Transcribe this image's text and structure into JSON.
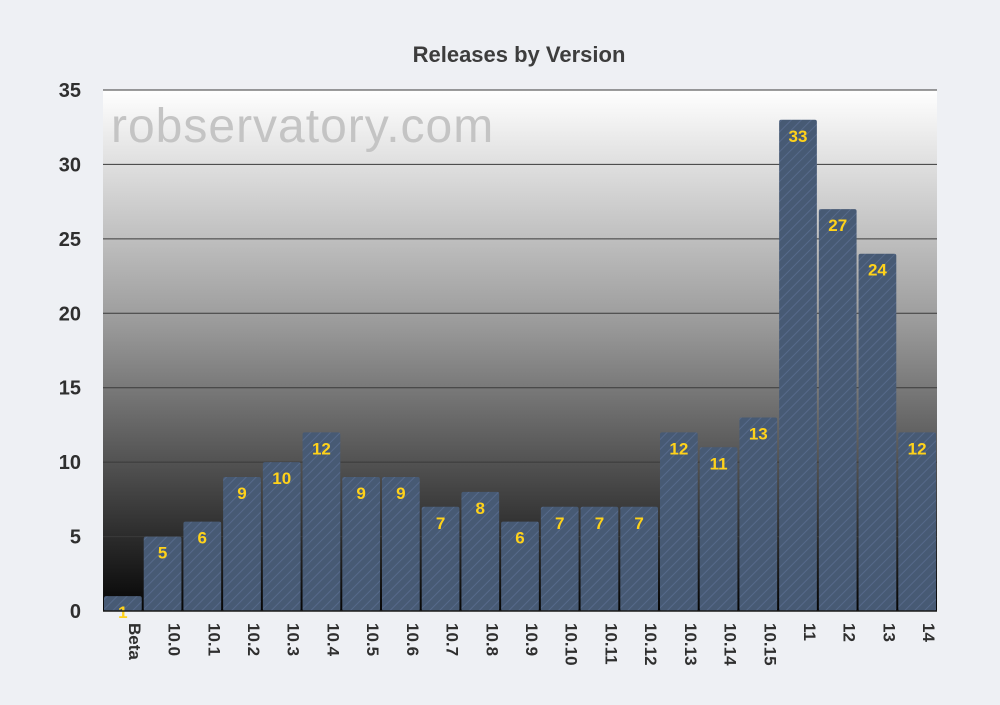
{
  "watermark": "robservatory.com",
  "colors": {
    "bar": "#475a74",
    "bar_stripe": "#56698a",
    "data_label": "#ffd21a",
    "grid": "#3a3a3a",
    "plot_top": "#ffffff",
    "plot_bottom": "#050505"
  },
  "chart_data": {
    "type": "bar",
    "title": "Releases by Version",
    "xlabel": "",
    "ylabel": "",
    "ylim": [
      0,
      35
    ],
    "yticks": [
      0,
      5,
      10,
      15,
      20,
      25,
      30,
      35
    ],
    "grid": true,
    "categories": [
      "Beta",
      "10.0",
      "10.1",
      "10.2",
      "10.3",
      "10.4",
      "10.5",
      "10.6",
      "10.7",
      "10.8",
      "10.9",
      "10.10",
      "10.11",
      "10.12",
      "10.13",
      "10.14",
      "10.15",
      "11",
      "12",
      "13",
      "14"
    ],
    "values": [
      1,
      5,
      6,
      9,
      10,
      12,
      9,
      9,
      7,
      8,
      6,
      7,
      7,
      7,
      12,
      11,
      13,
      33,
      27,
      24,
      12
    ]
  }
}
